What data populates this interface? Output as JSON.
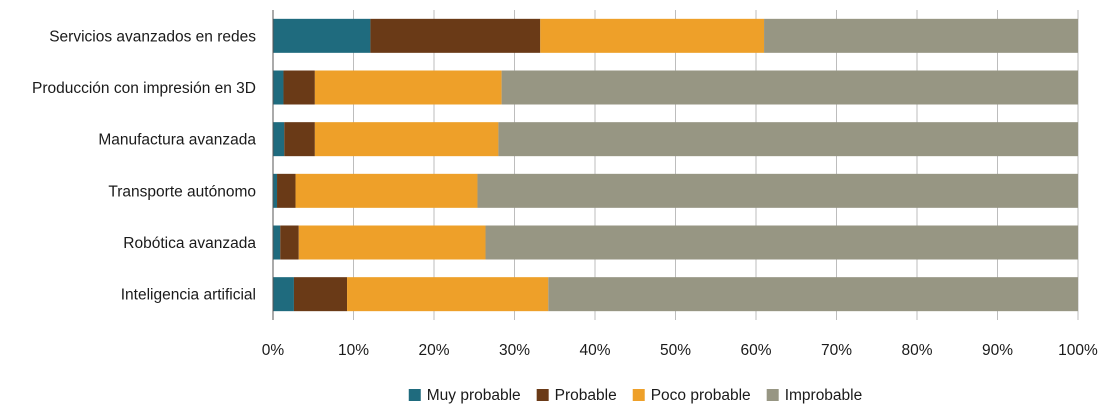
{
  "chart_data": {
    "type": "bar",
    "orientation": "horizontal",
    "stacked": true,
    "percent": true,
    "title": "",
    "xlabel": "",
    "ylabel": "",
    "xlim": [
      0,
      100
    ],
    "grid": "vertical",
    "legend_position": "bottom",
    "categories": [
      "Servicios avanzados en redes",
      "Producción con impresión en 3D",
      "Manufactura avanzada",
      "Transporte autónomo",
      "Robótica avanzada",
      "Inteligencia artificial"
    ],
    "x_ticks": [
      "0%",
      "10%",
      "20%",
      "30%",
      "40%",
      "50%",
      "60%",
      "70%",
      "80%",
      "90%",
      "100%"
    ],
    "series": [
      {
        "name": "Muy probable",
        "color": "#1f6b7e",
        "values": [
          12.1,
          1.3,
          1.4,
          0.5,
          0.9,
          2.6
        ]
      },
      {
        "name": "Probable",
        "color": "#6a3a17",
        "values": [
          21.1,
          3.9,
          3.8,
          2.3,
          2.3,
          6.6
        ]
      },
      {
        "name": "Poco probable",
        "color": "#eea029",
        "values": [
          27.8,
          23.2,
          22.8,
          22.6,
          23.2,
          25.0
        ]
      },
      {
        "name": "Improbable",
        "color": "#979683",
        "values": [
          39.0,
          71.6,
          72.0,
          74.6,
          73.6,
          65.8
        ]
      }
    ]
  }
}
